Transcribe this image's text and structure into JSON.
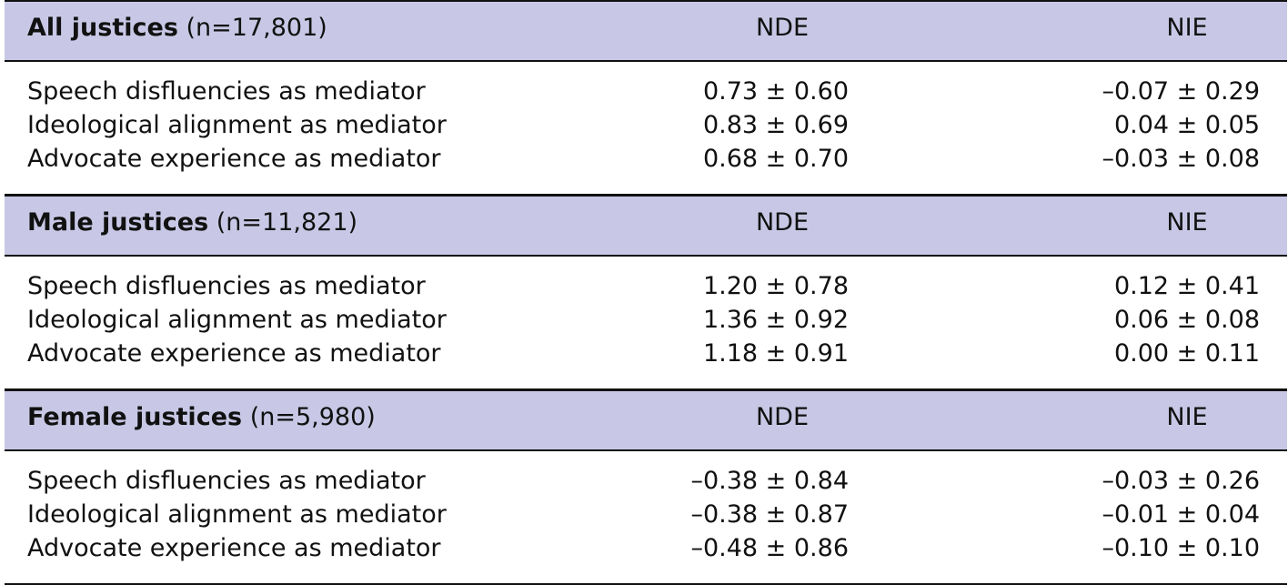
{
  "sections": [
    {
      "group": "All justices",
      "n": "(n=17,801)",
      "nde_header": "NDE",
      "nie_header": "NIE",
      "rows": [
        {
          "label": "Speech disfluencies as mediator",
          "nde": "0.73 ± 0.60",
          "nie": "–0.07 ± 0.29"
        },
        {
          "label": "Ideological alignment as mediator",
          "nde": "0.83 ± 0.69",
          "nie": "0.04 ± 0.05"
        },
        {
          "label": "Advocate experience as mediator",
          "nde": "0.68 ± 0.70",
          "nie": "–0.03 ± 0.08"
        }
      ]
    },
    {
      "group": "Male justices",
      "n": "(n=11,821)",
      "nde_header": "NDE",
      "nie_header": "NIE",
      "rows": [
        {
          "label": "Speech disfluencies as mediator",
          "nde": "1.20 ± 0.78",
          "nie": "0.12 ± 0.41"
        },
        {
          "label": "Ideological alignment as mediator",
          "nde": "1.36 ± 0.92",
          "nie": "0.06 ± 0.08"
        },
        {
          "label": "Advocate experience as mediator",
          "nde": "1.18 ± 0.91",
          "nie": "0.00 ± 0.11"
        }
      ]
    },
    {
      "group": "Female justices",
      "n": "(n=5,980)",
      "nde_header": "NDE",
      "nie_header": "NIE",
      "rows": [
        {
          "label": "Speech disfluencies as mediator",
          "nde": "–0.38 ± 0.84",
          "nie": "–0.03 ± 0.26"
        },
        {
          "label": "Ideological alignment as mediator",
          "nde": "–0.38 ± 0.87",
          "nie": "–0.01 ± 0.04"
        },
        {
          "label": "Advocate experience as mediator",
          "nde": "–0.48 ± 0.86",
          "nie": "–0.10 ± 0.10"
        }
      ]
    }
  ]
}
